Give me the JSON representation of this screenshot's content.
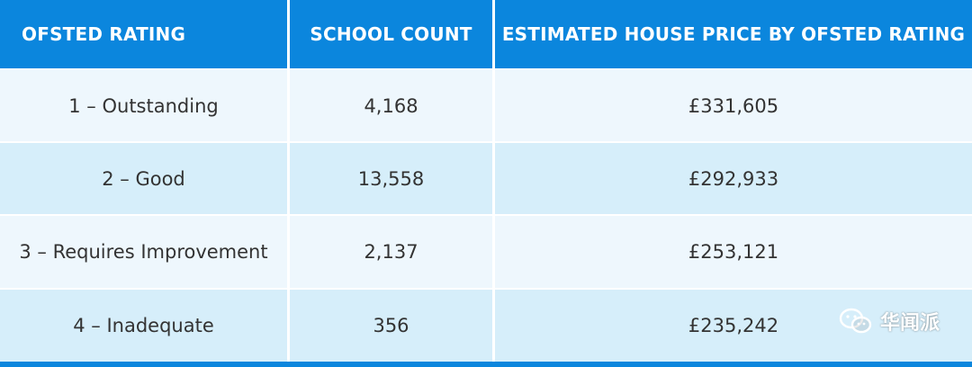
{
  "table": {
    "headers": [
      "OFSTED RATING",
      "SCHOOL COUNT",
      "ESTIMATED HOUSE PRICE BY OFSTED RATING"
    ],
    "rows": [
      [
        "1 – Outstanding",
        "4,168",
        "£331,605"
      ],
      [
        "2 – Good",
        "13,558",
        "£292,933"
      ],
      [
        "3 – Requires Improvement",
        "2,137",
        "£253,121"
      ],
      [
        "4 – Inadequate",
        "356",
        "£235,242"
      ]
    ]
  },
  "watermark": {
    "text": "华闻派",
    "icon": "wechat-icon"
  },
  "colors": {
    "header_bg": "#0b86dd",
    "row_light": "#eef7fd",
    "row_tint": "#d6eefa",
    "text": "#333333"
  }
}
